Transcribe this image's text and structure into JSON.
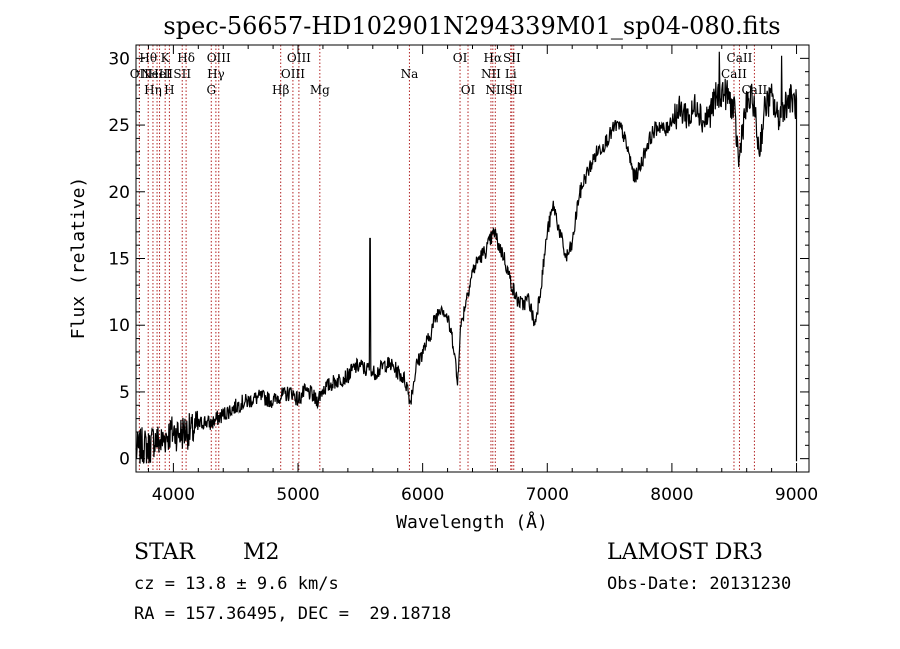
{
  "chart_data": {
    "type": "line",
    "title": "spec-56657-HD102901N294339M01_sp04-080.fits",
    "xlabel": "Wavelength (Å)",
    "ylabel": "Flux (relative)",
    "xlim": [
      3700,
      9100
    ],
    "ylim": [
      -1,
      31
    ],
    "x_ticks": [
      4000,
      5000,
      6000,
      7000,
      8000,
      9000
    ],
    "y_ticks": [
      0,
      5,
      10,
      15,
      20,
      25,
      30
    ],
    "grid": false,
    "series": [
      {
        "name": "spectrum",
        "x": [
          3700,
          3750,
          3800,
          3850,
          3900,
          3950,
          4000,
          4050,
          4100,
          4150,
          4200,
          4250,
          4300,
          4350,
          4400,
          4450,
          4500,
          4550,
          4600,
          4650,
          4700,
          4750,
          4800,
          4850,
          4900,
          4950,
          5000,
          5050,
          5100,
          5150,
          5200,
          5250,
          5300,
          5350,
          5400,
          5450,
          5500,
          5550,
          5580,
          5600,
          5650,
          5700,
          5750,
          5800,
          5850,
          5880,
          5900,
          5950,
          6000,
          6050,
          6100,
          6150,
          6200,
          6250,
          6280,
          6300,
          6350,
          6400,
          6450,
          6500,
          6550,
          6580,
          6600,
          6650,
          6700,
          6750,
          6800,
          6850,
          6900,
          6950,
          7000,
          7050,
          7100,
          7150,
          7200,
          7250,
          7300,
          7350,
          7400,
          7450,
          7500,
          7550,
          7600,
          7650,
          7700,
          7750,
          7800,
          7850,
          7900,
          7950,
          8000,
          8050,
          8100,
          8150,
          8200,
          8250,
          8300,
          8350,
          8400,
          8450,
          8500,
          8540,
          8560,
          8600,
          8650,
          8700,
          8750,
          8800,
          8850,
          8900,
          8950,
          9000
        ],
        "y": [
          0.5,
          1.0,
          0.8,
          1.5,
          1.2,
          1.8,
          2.0,
          1.9,
          2.1,
          2.0,
          2.5,
          2.8,
          2.6,
          3.0,
          3.3,
          3.6,
          3.9,
          4.2,
          4.3,
          4.5,
          4.6,
          4.5,
          4.3,
          4.7,
          4.8,
          5.0,
          4.4,
          5.0,
          4.9,
          4.3,
          5.2,
          5.5,
          5.8,
          6.0,
          6.2,
          6.8,
          7.0,
          6.6,
          7.0,
          6.4,
          6.6,
          7.1,
          7.0,
          6.5,
          6.0,
          5.3,
          4.2,
          7.0,
          8.0,
          9.0,
          10.5,
          11.5,
          10.5,
          8.5,
          5.5,
          9.5,
          12.0,
          14.0,
          15.0,
          15.5,
          16.5,
          17.0,
          16.2,
          15.2,
          13.5,
          12.0,
          11.5,
          12.0,
          10.0,
          13.0,
          17.0,
          19.0,
          17.0,
          15.0,
          16.0,
          19.5,
          21.0,
          22.0,
          23.0,
          23.5,
          24.2,
          25.0,
          24.6,
          23.0,
          21.0,
          22.0,
          23.5,
          24.5,
          25.0,
          24.5,
          25.5,
          26.0,
          26.0,
          25.5,
          26.8,
          25.2,
          25.8,
          27.0,
          27.5,
          27.2,
          26.0,
          22.0,
          24.5,
          26.5,
          27.0,
          23.0,
          26.5,
          27.0,
          25.5,
          26.5,
          27.0,
          26.5
        ]
      }
    ],
    "spikes": [
      {
        "x": 5578,
        "y": 16.5
      },
      {
        "x": 8380,
        "y": 30.5
      },
      {
        "x": 8880,
        "y": 30.2
      }
    ],
    "lines": [
      {
        "x": 3727,
        "top": "OII",
        "y_level": 74
      },
      {
        "x": 3798,
        "top": "Hθ",
        "y_level": 58
      },
      {
        "x": 3836,
        "top": "Hη",
        "y_level": 90
      },
      {
        "x": 3869,
        "top": "NeIII",
        "y_level": 74
      },
      {
        "x": 3889,
        "top": "HeI",
        "y_level": 74
      },
      {
        "x": 3934,
        "top": "K",
        "y_level": 58
      },
      {
        "x": 3968,
        "top": "H",
        "y_level": 90
      },
      {
        "x": 4071,
        "top": "SII",
        "y_level": 74
      },
      {
        "x": 4102,
        "top": "Hδ",
        "y_level": 58
      },
      {
        "x": 4304,
        "top": "G",
        "y_level": 90
      },
      {
        "x": 4341,
        "top": "Hγ",
        "y_level": 74
      },
      {
        "x": 4364,
        "top": "OIII",
        "y_level": 58
      },
      {
        "x": 4861,
        "top": "Hβ",
        "y_level": 90
      },
      {
        "x": 4959,
        "top": "OIII",
        "y_level": 74
      },
      {
        "x": 5007,
        "top": "OIII",
        "y_level": 58
      },
      {
        "x": 5175,
        "top": "Mg",
        "y_level": 90
      },
      {
        "x": 5894,
        "top": "Na",
        "y_level": 74
      },
      {
        "x": 6300,
        "top": "OI",
        "y_level": 58
      },
      {
        "x": 6364,
        "top": "OI",
        "y_level": 90
      },
      {
        "x": 6548,
        "top": "NII",
        "y_level": 74
      },
      {
        "x": 6563,
        "top": "Hα",
        "y_level": 58
      },
      {
        "x": 6583,
        "top": "NII",
        "y_level": 90
      },
      {
        "x": 6707,
        "top": "Li",
        "y_level": 74
      },
      {
        "x": 6716,
        "top": "SII",
        "y_level": 58
      },
      {
        "x": 6731,
        "top": "SII",
        "y_level": 90
      },
      {
        "x": 8498,
        "top": "CaII",
        "y_level": 74
      },
      {
        "x": 8542,
        "top": "CaII",
        "y_level": 58
      },
      {
        "x": 8662,
        "top": "CaII",
        "y_level": 90
      }
    ]
  },
  "info": {
    "class_label": "STAR",
    "subclass": "M2",
    "survey": "LAMOST DR3",
    "cz": "cz = 13.8 ± 9.6 km/s",
    "obs_date": "Obs-Date: 20131230",
    "coords": "RA = 157.36495, DEC =  29.18718"
  }
}
